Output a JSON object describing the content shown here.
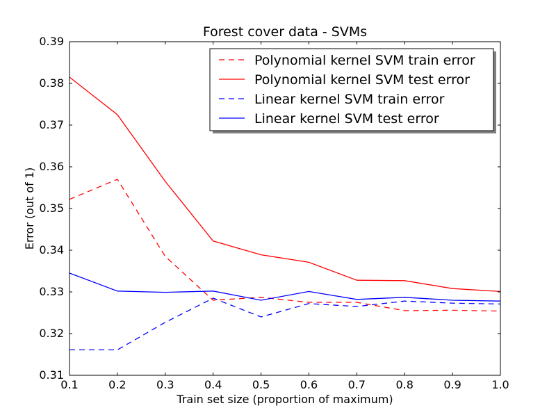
{
  "chart_data": {
    "type": "line",
    "title": "Forest cover data - SVMs",
    "xlabel": "Train set size (proportion of maximum)",
    "ylabel": "Error (out of 1)",
    "xlim": [
      0.1,
      1.0
    ],
    "ylim": [
      0.31,
      0.39
    ],
    "xticks": [
      "0.1",
      "0.2",
      "0.3",
      "0.4",
      "0.5",
      "0.6",
      "0.7",
      "0.8",
      "0.9",
      "1.0"
    ],
    "yticks": [
      "0.31",
      "0.32",
      "0.33",
      "0.34",
      "0.35",
      "0.36",
      "0.37",
      "0.38",
      "0.39"
    ],
    "x": [
      0.1,
      0.2,
      0.3,
      0.4,
      0.5,
      0.6,
      0.7,
      0.8,
      0.9,
      1.0
    ],
    "legend_position": "top-right",
    "grid": false,
    "series": [
      {
        "name": "Polynomial kernel SVM train error",
        "color": "#ff0000",
        "style": "dashed",
        "values": [
          0.3522,
          0.357,
          0.3385,
          0.328,
          0.3287,
          0.3275,
          0.3275,
          0.3255,
          0.3256,
          0.3254
        ]
      },
      {
        "name": "Polynomial kernel SVM test error",
        "color": "#ff0000",
        "style": "solid",
        "values": [
          0.3815,
          0.3725,
          0.3565,
          0.3422,
          0.3389,
          0.3371,
          0.3328,
          0.3327,
          0.3308,
          0.3301
        ]
      },
      {
        "name": "Linear kernel SVM train error",
        "color": "#0000ff",
        "style": "dashed",
        "values": [
          0.3161,
          0.3161,
          0.3227,
          0.3285,
          0.324,
          0.3272,
          0.3265,
          0.3278,
          0.3273,
          0.3271
        ]
      },
      {
        "name": "Linear kernel SVM test error",
        "color": "#0000ff",
        "style": "solid",
        "values": [
          0.3345,
          0.3302,
          0.3299,
          0.3302,
          0.328,
          0.3301,
          0.3282,
          0.3287,
          0.328,
          0.3278
        ]
      }
    ]
  }
}
